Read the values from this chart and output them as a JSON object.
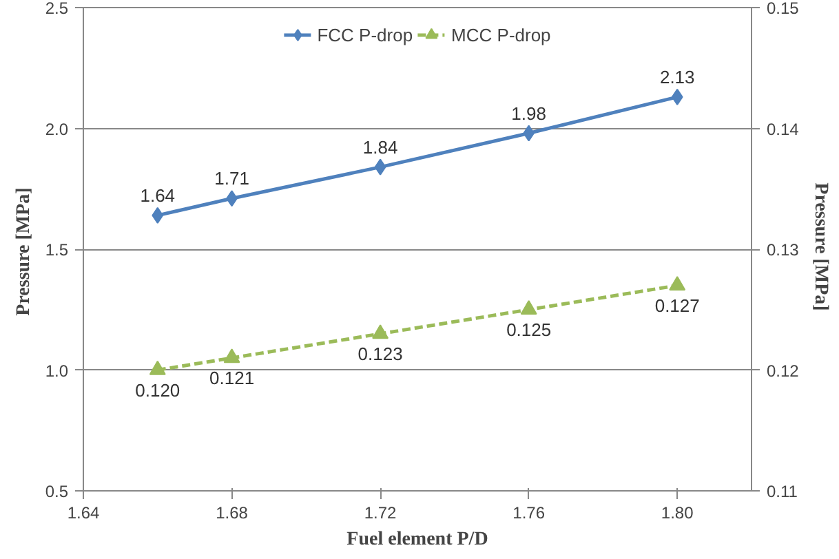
{
  "chart_data": {
    "type": "line",
    "xlabel": "Fuel element P/D",
    "ylabel": "Pressure  [MPa]",
    "y2label": "Pressure  [MPa]",
    "x": [
      1.66,
      1.68,
      1.72,
      1.76,
      1.8
    ],
    "series": [
      {
        "name": "FCC P-drop",
        "color": "#4f81bd",
        "values": [
          1.64,
          1.71,
          1.84,
          1.98,
          2.13
        ],
        "marker": "diamond",
        "line_style": "solid",
        "value_labels": [
          "1.64",
          "1.71",
          "1.84",
          "1.98",
          "2.13"
        ]
      },
      {
        "name": "MCC P-drop",
        "color": "#9bbb59",
        "values": [
          0.12,
          0.121,
          0.123,
          0.125,
          0.127
        ],
        "marker": "triangle",
        "line_style": "dashed",
        "axis": "y2",
        "value_labels": [
          "0.120",
          "0.121",
          "0.123",
          "0.125",
          "0.127"
        ]
      }
    ],
    "xlim": [
      1.64,
      1.82
    ],
    "xticks": [
      1.64,
      1.68,
      1.72,
      1.76,
      {
        "value": 1.8,
        "label": "1.80"
      }
    ],
    "ylim": [
      0.5,
      2.5
    ],
    "yticks": [
      0.5,
      {
        "value": 1.0,
        "label": "1.0"
      },
      1.5,
      {
        "value": 2.0,
        "label": "2.0"
      },
      2.5
    ],
    "y2lim": [
      0.11,
      0.15
    ],
    "y2ticks": [
      0.11,
      0.12,
      0.13,
      0.14,
      0.15
    ],
    "grid": "y",
    "legend": "top"
  }
}
